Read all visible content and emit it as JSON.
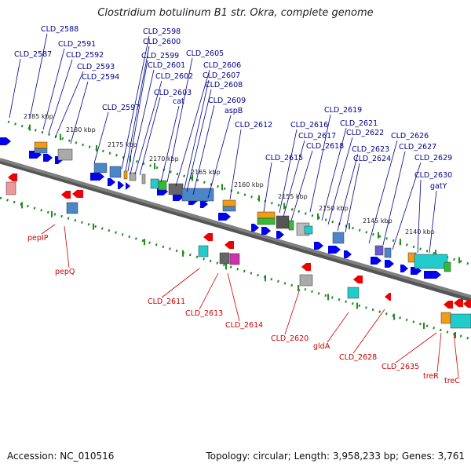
{
  "title": "Clostridium botulinum B1 str. Okra, complete genome",
  "footer": {
    "accession": "Accession: NC_010516",
    "topology": "Topology: circular; Length: 3,958,233 bp; Genes: 3,761"
  },
  "colors": {
    "background": "#ffffff",
    "backbone": "#7f7f7f",
    "tick": "#228b22",
    "forward_gene": "#0000ee",
    "reverse_gene": "#ee0000",
    "label_top": "#00008b",
    "label_bottom": "#cc0000",
    "domain_cyan": "#22cccc",
    "domain_blue": "#4a86c8",
    "domain_orange": "#f39c12",
    "domain_gray": "#888888",
    "domain_green": "#33bb33",
    "domain_magenta": "#cc33aa",
    "domain_purple": "#6a5acd"
  },
  "scale_labels": [
    "2185 kbp",
    "2180 kbp",
    "2175 kbp",
    "2170 kbp",
    "2165 kbp",
    "2160 kbp",
    "2155 kbp",
    "2150 kbp",
    "2145 kbp",
    "2140 kbp"
  ],
  "top_labels": [
    "CLD_2588",
    "CLD_2587",
    "CLD_2591",
    "CLD_2592",
    "CLD_2593",
    "CLD_2594",
    "CLD_2598",
    "CLD_2600",
    "CLD_2599",
    "CLD_2601",
    "CLD_2602",
    "CLD_2603",
    "cat",
    "CLD_2597",
    "CLD_2605",
    "CLD_2606",
    "CLD_2607",
    "CLD_2608",
    "CLD_2609",
    "aspB",
    "CLD_2612",
    "CLD_2619",
    "CLD_2616",
    "CLD_2617",
    "CLD_2621",
    "CLD_2618",
    "CLD_2622",
    "CLD_2615",
    "CLD_2623",
    "CLD_2624",
    "CLD_2626",
    "CLD_2627",
    "CLD_2629",
    "CLD_2630",
    "gatY"
  ],
  "bottom_labels": [
    "pepIP",
    "pepQ",
    "CLD_2611",
    "CLD_2613",
    "CLD_2614",
    "CLD_2620",
    "gldA",
    "CLD_2628",
    "CLD_2635",
    "treR",
    "treC"
  ]
}
